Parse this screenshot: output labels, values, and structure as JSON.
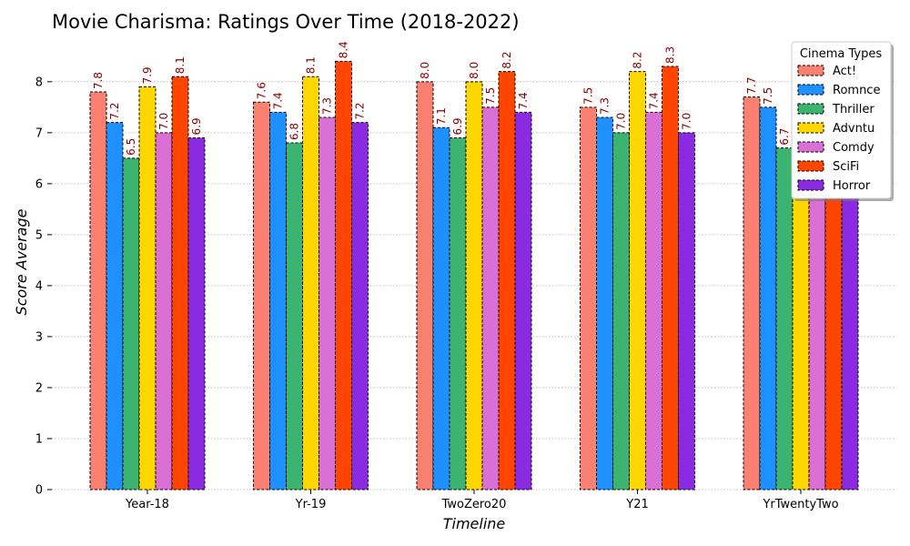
{
  "chart_data": {
    "type": "bar",
    "title": "Movie Charisma: Ratings Over Time (2018-2022)",
    "xlabel": "Timeline",
    "ylabel": "Score Average",
    "categories": [
      "Year-18",
      "Yr-19",
      "TwoZero20",
      "Y21",
      "YrTwentyTwo"
    ],
    "ylim": [
      0,
      8.8
    ],
    "yticks": [
      0,
      1,
      2,
      3,
      4,
      5,
      6,
      7,
      8
    ],
    "grid": "horizontal dotted",
    "legend": {
      "title": "Cinema Types",
      "position": "top-right"
    },
    "series": [
      {
        "name": "Act!",
        "color": "#fa8072",
        "values": [
          7.8,
          7.6,
          8.0,
          7.5,
          7.7
        ],
        "labels": [
          "7.8",
          "7.6",
          "8.0",
          "7.5",
          "7.7"
        ]
      },
      {
        "name": "Romnce",
        "color": "#1e90ff",
        "values": [
          7.2,
          7.4,
          7.1,
          7.3,
          7.5
        ],
        "labels": [
          "7.2",
          "7.4",
          "7.1",
          "7.3",
          "7.5"
        ]
      },
      {
        "name": "Thriller",
        "color": "#3cb371",
        "values": [
          6.5,
          6.8,
          6.9,
          7.0,
          6.7
        ],
        "labels": [
          "6.5",
          "6.8",
          "6.9",
          "7.0",
          "6.7"
        ]
      },
      {
        "name": "Advntu",
        "color": "#ffd700",
        "values": [
          7.9,
          8.1,
          8.0,
          8.2,
          8.0
        ],
        "labels": [
          "7.9",
          "8.1",
          "8.0",
          "8.2",
          ""
        ]
      },
      {
        "name": "Comdy",
        "color": "#da70d6",
        "values": [
          7.0,
          7.3,
          7.5,
          7.4,
          7.5
        ],
        "labels": [
          "7.0",
          "7.3",
          "7.5",
          "7.4",
          ""
        ]
      },
      {
        "name": "SciFi",
        "color": "#ff4500",
        "values": [
          8.1,
          8.4,
          8.2,
          8.3,
          8.5
        ],
        "labels": [
          "8.1",
          "8.4",
          "8.2",
          "8.3",
          ""
        ]
      },
      {
        "name": "Horror",
        "color": "#8a2be2",
        "values": [
          6.9,
          7.2,
          7.4,
          7.0,
          7.1
        ],
        "labels": [
          "6.9",
          "7.2",
          "7.4",
          "7.0",
          ""
        ]
      }
    ]
  }
}
